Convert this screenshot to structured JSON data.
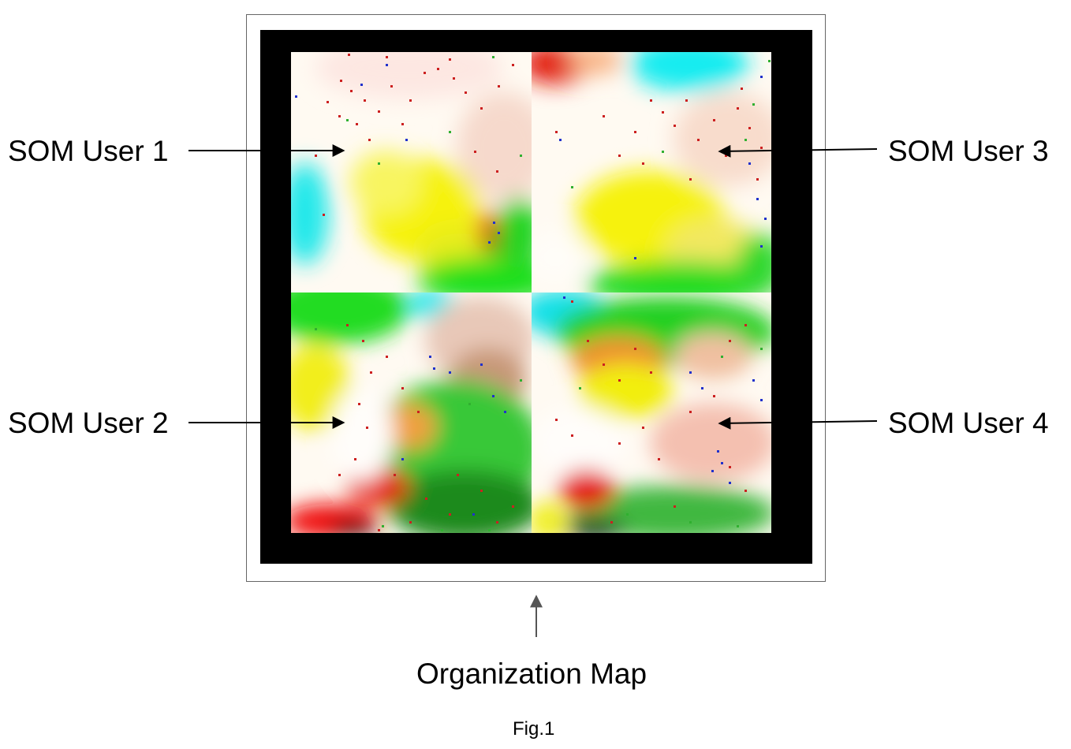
{
  "labels": {
    "user1": "SOM User 1",
    "user2": "SOM User 2",
    "user3": "SOM User 3",
    "user4": "SOM User 4"
  },
  "caption": "Organization Map",
  "figure_label": "Fig.1"
}
